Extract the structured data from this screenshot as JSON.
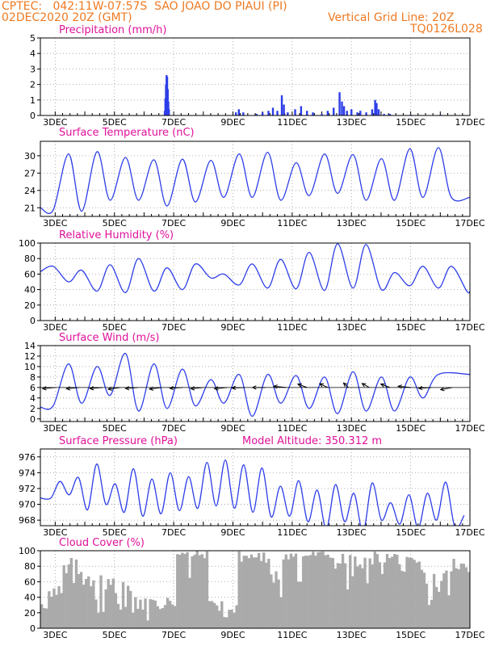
{
  "header": {
    "line1": "CPTEC:   042:11W-07:57S  SAO JOAO DO PIAUI (PI)",
    "line2_left": "02DEC2020 20Z (GMT)",
    "line2_right": "Vertical Grid Line: 20Z",
    "line3_right": "TQ0126L028",
    "color": "#ee7a22"
  },
  "colors": {
    "title": "#e0119a",
    "series": "#2d3ee8",
    "cloud": "#aaaaaa",
    "wind_arrow": "#000000",
    "grid": "#9a9a9a"
  },
  "x_axis": {
    "start": "02DEC2020 20Z",
    "end": "17DEC2020 00Z",
    "tick_labels": [
      "3DEC",
      "5DEC",
      "7DEC",
      "9DEC",
      "11DEC",
      "13DEC",
      "15DEC",
      "17DEC"
    ],
    "tick_days": [
      3,
      5,
      7,
      9,
      11,
      13,
      15,
      17
    ]
  },
  "chart_data": [
    {
      "id": "precip",
      "type": "bar",
      "title": "Precipitation (mm/h)",
      "ylim": [
        0,
        5
      ],
      "yticks": [
        0,
        1,
        2,
        3,
        4,
        5
      ],
      "x_unit": "day of December 2020 (fractional)",
      "points": [
        [
          6.7,
          0.3
        ],
        [
          6.72,
          1.1
        ],
        [
          6.74,
          2.0
        ],
        [
          6.76,
          2.6
        ],
        [
          6.78,
          2.5
        ],
        [
          6.8,
          1.7
        ],
        [
          6.82,
          0.9
        ],
        [
          6.84,
          0.4
        ],
        [
          9.1,
          0.2
        ],
        [
          9.2,
          0.4
        ],
        [
          9.35,
          0.2
        ],
        [
          9.8,
          0.1
        ],
        [
          10.0,
          0.2
        ],
        [
          10.2,
          0.3
        ],
        [
          10.35,
          0.5
        ],
        [
          10.5,
          0.3
        ],
        [
          10.65,
          1.3
        ],
        [
          10.72,
          0.7
        ],
        [
          10.85,
          0.2
        ],
        [
          11.1,
          0.4
        ],
        [
          11.3,
          0.6
        ],
        [
          11.5,
          0.3
        ],
        [
          11.7,
          0.2
        ],
        [
          12.0,
          0.1
        ],
        [
          12.2,
          0.3
        ],
        [
          12.4,
          0.5
        ],
        [
          12.6,
          1.5
        ],
        [
          12.68,
          0.9
        ],
        [
          12.75,
          0.6
        ],
        [
          12.85,
          0.3
        ],
        [
          13.0,
          0.4
        ],
        [
          13.2,
          0.2
        ],
        [
          13.3,
          0.3
        ],
        [
          13.5,
          0.2
        ],
        [
          13.7,
          0.4
        ],
        [
          13.8,
          1.0
        ],
        [
          13.85,
          0.8
        ],
        [
          13.92,
          0.4
        ],
        [
          14.1,
          0.1
        ],
        [
          14.3,
          0.1
        ],
        [
          15.0,
          0.05
        ],
        [
          16.0,
          0.05
        ]
      ]
    },
    {
      "id": "temp",
      "type": "line",
      "title": "Surface Temperature (nC)",
      "ylim": [
        19.5,
        32.5
      ],
      "yticks": [
        21,
        24,
        27,
        30
      ],
      "t0": 2.833,
      "dt": 0.25,
      "minima": [
        20.6,
        20.4,
        22.3,
        22.3,
        21.3,
        22.0,
        22.8,
        22.8,
        22.3,
        23.1,
        23.5,
        22.3,
        22.3,
        22.8,
        22.8
      ],
      "maxima": [
        30.3,
        30.7,
        29.7,
        29.3,
        29.4,
        29.2,
        30.3,
        30.6,
        28.8,
        30.3,
        30.2,
        29.5,
        31.2,
        31.4
      ]
    },
    {
      "id": "rh",
      "type": "line",
      "title": "Relative Humidity (%)",
      "ylim": [
        0,
        100
      ],
      "yticks": [
        0,
        20,
        40,
        60,
        80,
        100
      ],
      "t0": 2.833,
      "dt": 0.25,
      "maxima": [
        70,
        65,
        72,
        80,
        68,
        73,
        60,
        73,
        79,
        88,
        99,
        98,
        62,
        70,
        70
      ],
      "minima": [
        50,
        38,
        36,
        38,
        40,
        55,
        46,
        42,
        41,
        39,
        42,
        40,
        45,
        42,
        38
      ]
    },
    {
      "id": "wind",
      "type": "line",
      "title": "Surface Wind (m/s)",
      "ylim": [
        -0.5,
        14
      ],
      "yticks": [
        0,
        2,
        4,
        6,
        8,
        10,
        12,
        14
      ],
      "t0": 2.833,
      "dt": 0.25,
      "maxima": [
        10.5,
        10.0,
        12.5,
        10.5,
        9.5,
        7.5,
        8.5,
        8.5,
        8.3,
        8.0,
        9.0,
        8.0,
        8.0,
        8.5
      ],
      "minima": [
        2.5,
        3.0,
        4.5,
        1.5,
        2.0,
        2.5,
        3.0,
        0.5,
        3.0,
        2.0,
        1.0,
        1.5,
        1.5,
        4.0
      ],
      "arrows": [
        {
          "day": 3.0,
          "u": 5,
          "v": 1.2
        },
        {
          "day": 3.8,
          "u": 6,
          "v": 1.5
        },
        {
          "day": 4.6,
          "u": 4.5,
          "v": 1.0
        },
        {
          "day": 5.2,
          "u": 4,
          "v": 1.5
        },
        {
          "day": 5.8,
          "u": 5,
          "v": 1.0
        },
        {
          "day": 6.6,
          "u": 4.5,
          "v": 1.5
        },
        {
          "day": 7.3,
          "u": 3,
          "v": 0.5
        },
        {
          "day": 8.0,
          "u": 4,
          "v": 1.0
        },
        {
          "day": 8.8,
          "u": 3,
          "v": 0.8
        },
        {
          "day": 9.4,
          "u": 3,
          "v": 0.3
        },
        {
          "day": 10.1,
          "u": 2,
          "v": 0
        },
        {
          "day": 10.8,
          "u": 2,
          "v": -0.5
        },
        {
          "day": 11.5,
          "u": 1,
          "v": -1.0
        },
        {
          "day": 12.2,
          "u": 0.8,
          "v": -1.0
        },
        {
          "day": 12.9,
          "u": 0.5,
          "v": -1.2
        },
        {
          "day": 13.6,
          "u": 0.8,
          "v": -1.2
        },
        {
          "day": 14.3,
          "u": 1,
          "v": -1.0
        },
        {
          "day": 15.0,
          "u": 2,
          "v": -0.5
        },
        {
          "day": 15.7,
          "u": 3,
          "v": 0.5
        },
        {
          "day": 16.4,
          "u": 2,
          "v": 1.0
        }
      ]
    },
    {
      "id": "press",
      "type": "line",
      "title": "Surface Pressure (hPa)",
      "subtitle": "Model Altitude: 350.312 m",
      "ylim": [
        967.3,
        977
      ],
      "yticks": [
        968,
        970,
        972,
        974,
        976
      ],
      "t0": 2.833,
      "dt": 0.25,
      "values": [
        970.8,
        972.9,
        971.2,
        973.4,
        969.3,
        975.1,
        970.0,
        972.6,
        969.0,
        974.5,
        968.5,
        973.2,
        968.8,
        974.0,
        969.2,
        973.5,
        969.5,
        975.3,
        969.8,
        975.6,
        969.5,
        975.0,
        969.0,
        974.6,
        968.4,
        972.3,
        968.5,
        973.0,
        967.8,
        971.8,
        966.9,
        972.5,
        967.8,
        971.4,
        966.5,
        972.7,
        968.0,
        970.2,
        967.5,
        971.2,
        967.0,
        971.4,
        968.0,
        972.8,
        967.1,
        968.6
      ]
    },
    {
      "id": "cloud",
      "type": "area",
      "title": "Cloud Cover (%)",
      "ylim": [
        0,
        100
      ],
      "yticks": [
        0,
        20,
        40,
        60,
        80,
        100
      ],
      "dt": 0.0833,
      "ranges": [
        {
          "from": 2.5,
          "to": 3.2,
          "lo": 20,
          "hi": 60
        },
        {
          "from": 3.2,
          "to": 4.3,
          "lo": 50,
          "hi": 92
        },
        {
          "from": 4.3,
          "to": 5.4,
          "lo": 20,
          "hi": 80
        },
        {
          "from": 5.4,
          "to": 6.0,
          "lo": 15,
          "hi": 60
        },
        {
          "from": 6.0,
          "to": 6.6,
          "lo": 15,
          "hi": 45
        },
        {
          "from": 6.6,
          "to": 7.0,
          "lo": 20,
          "hi": 65
        },
        {
          "from": 7.0,
          "to": 8.1,
          "lo": 90,
          "hi": 100
        },
        {
          "from": 8.1,
          "to": 8.4,
          "lo": 30,
          "hi": 70
        },
        {
          "from": 8.4,
          "to": 9.1,
          "lo": 8,
          "hi": 40
        },
        {
          "from": 9.1,
          "to": 10.0,
          "lo": 85,
          "hi": 100
        },
        {
          "from": 10.0,
          "to": 10.6,
          "lo": 55,
          "hi": 92
        },
        {
          "from": 10.6,
          "to": 11.5,
          "lo": 88,
          "hi": 100
        },
        {
          "from": 11.5,
          "to": 12.3,
          "lo": 90,
          "hi": 100
        },
        {
          "from": 12.3,
          "to": 12.8,
          "lo": 75,
          "hi": 98
        },
        {
          "from": 12.8,
          "to": 13.6,
          "lo": 65,
          "hi": 95
        },
        {
          "from": 13.6,
          "to": 14.6,
          "lo": 82,
          "hi": 100
        },
        {
          "from": 14.6,
          "to": 15.4,
          "lo": 60,
          "hi": 92
        },
        {
          "from": 15.4,
          "to": 16.3,
          "lo": 35,
          "hi": 82
        },
        {
          "from": 16.3,
          "to": 17.0,
          "lo": 55,
          "hi": 95
        }
      ],
      "drops": [
        [
          4.4,
          20
        ],
        [
          6.05,
          10
        ],
        [
          7.5,
          65
        ],
        [
          8.2,
          35
        ],
        [
          10.6,
          40
        ],
        [
          11.2,
          60
        ],
        [
          12.8,
          50
        ],
        [
          13.5,
          58
        ],
        [
          14.0,
          70
        ],
        [
          15.55,
          30
        ]
      ]
    }
  ]
}
